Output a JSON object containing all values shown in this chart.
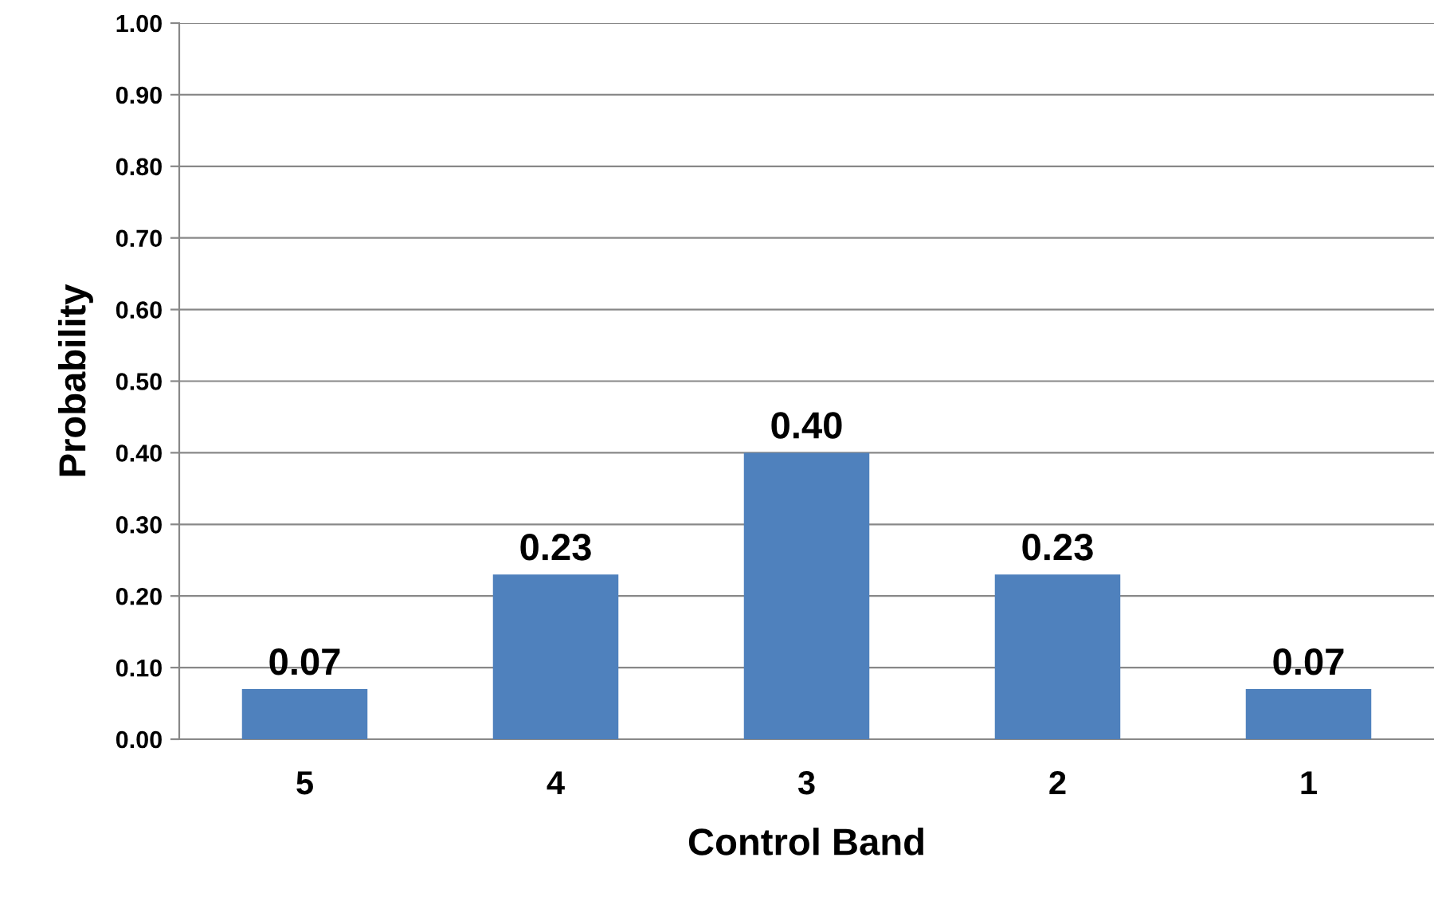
{
  "chart_data": {
    "type": "bar",
    "xlabel": "Control Band",
    "ylabel": "Probability",
    "categories": [
      "5",
      "4",
      "3",
      "2",
      "1"
    ],
    "values": [
      0.07,
      0.23,
      0.4,
      0.23,
      0.07
    ],
    "value_labels": [
      "0.07",
      "0.23",
      "0.40",
      "0.23",
      "0.07"
    ],
    "color": "#4f81bd",
    "ylim": [
      0,
      1
    ],
    "yticks": [
      {
        "value": 0,
        "label": "0.00"
      },
      {
        "value": 0.1,
        "label": "0.10"
      },
      {
        "value": 0.2,
        "label": "0.20"
      },
      {
        "value": 0.3,
        "label": "0.30"
      },
      {
        "value": 0.4,
        "label": "0.40"
      },
      {
        "value": 0.5,
        "label": "0.50"
      },
      {
        "value": 0.6,
        "label": "0.60"
      },
      {
        "value": 0.7,
        "label": "0.70"
      },
      {
        "value": 0.8,
        "label": "0.80"
      },
      {
        "value": 0.9,
        "label": "0.90"
      },
      {
        "value": 1,
        "label": "1.00"
      }
    ],
    "grid": "y",
    "legend": false
  }
}
